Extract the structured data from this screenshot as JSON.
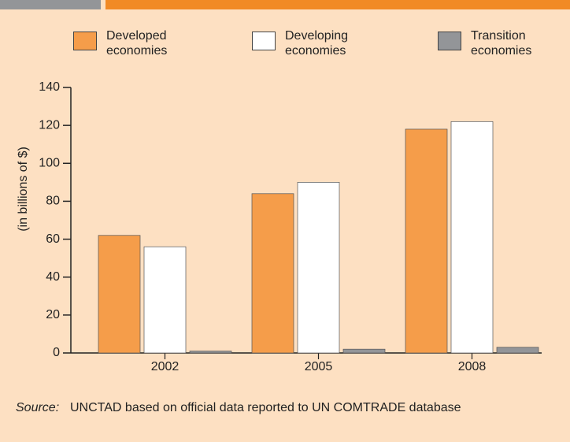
{
  "chart_data": {
    "type": "bar",
    "categories": [
      "2002",
      "2005",
      "2008"
    ],
    "series": [
      {
        "name": "Developed economies",
        "color": "#f59d4a",
        "values": [
          62,
          84,
          118
        ]
      },
      {
        "name": "Developing economies",
        "color": "#ffffff",
        "values": [
          56,
          90,
          122
        ]
      },
      {
        "name": "Transition economies",
        "color": "#939598",
        "values": [
          1,
          2,
          3
        ]
      }
    ],
    "ylabel": "(in billions of $)",
    "ylim": [
      0,
      140
    ],
    "yticks": [
      0,
      20,
      40,
      60,
      80,
      100,
      120,
      140
    ],
    "source_label": "Source:",
    "source": "UNCTAD based on official data reported to UN COMTRADE database"
  }
}
